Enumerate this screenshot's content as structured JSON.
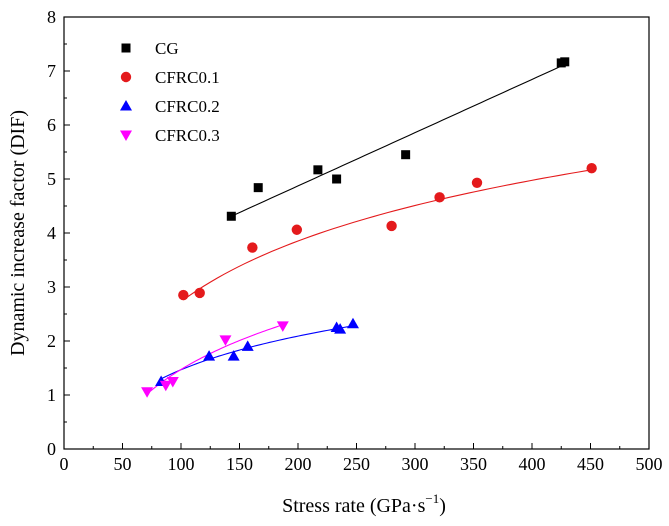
{
  "chart_data": {
    "type": "scatter",
    "title": "",
    "xlabel": "Stress rate (GPa·s",
    "xlabel_sup": "−1",
    "xlabel_close": ")",
    "ylabel": "Dynamic increase factor (DIF)",
    "xlim": [
      0,
      500
    ],
    "ylim": [
      0,
      8
    ],
    "xticks": [
      0,
      50,
      100,
      150,
      200,
      250,
      300,
      350,
      400,
      450,
      500
    ],
    "yticks": [
      0,
      1,
      2,
      3,
      4,
      5,
      6,
      7,
      8
    ],
    "xtick_labels": [
      "0",
      "50",
      "100",
      "150",
      "200",
      "250",
      "300",
      "350",
      "400",
      "450",
      "500"
    ],
    "ytick_labels": [
      "0",
      "1",
      "2",
      "3",
      "4",
      "5",
      "6",
      "7",
      "8"
    ],
    "legend_position": "top-left",
    "series": [
      {
        "name": "CG",
        "marker": "square",
        "color": "#000000",
        "x": [
          143,
          166,
          217,
          233,
          292,
          425,
          428
        ],
        "y": [
          4.31,
          4.84,
          5.17,
          5.0,
          5.45,
          7.15,
          7.17
        ],
        "fit": {
          "kind": "linear",
          "x_range": [
            143,
            428
          ],
          "y_range": [
            4.31,
            7.12
          ]
        }
      },
      {
        "name": "CFRC0.1",
        "marker": "circle",
        "color": "#e41a1c",
        "x": [
          102,
          116,
          161,
          199,
          280,
          321,
          353,
          451
        ],
        "y": [
          2.85,
          2.89,
          3.73,
          4.06,
          4.13,
          4.66,
          4.93,
          5.2
        ],
        "fit": {
          "kind": "log",
          "x_range": [
            102,
            451
          ],
          "y_range": [
            2.76,
            5.17
          ]
        }
      },
      {
        "name": "CFRC0.2",
        "marker": "triangle-up",
        "color": "#0000ff",
        "x": [
          83,
          124,
          145,
          157,
          233,
          236,
          247
        ],
        "y": [
          1.25,
          1.72,
          1.72,
          1.9,
          2.25,
          2.22,
          2.32
        ],
        "fit": {
          "kind": "log",
          "x_range": [
            83,
            247
          ],
          "y_range": [
            1.3,
            2.28
          ]
        }
      },
      {
        "name": "CFRC0.3",
        "marker": "triangle-down",
        "color": "#ff00ff",
        "x": [
          71,
          87,
          93,
          138,
          187
        ],
        "y": [
          1.06,
          1.18,
          1.25,
          2.02,
          2.28
        ],
        "fit": {
          "kind": "log",
          "x_range": [
            71,
            187
          ],
          "y_range": [
            1.02,
            2.3
          ]
        }
      }
    ]
  }
}
